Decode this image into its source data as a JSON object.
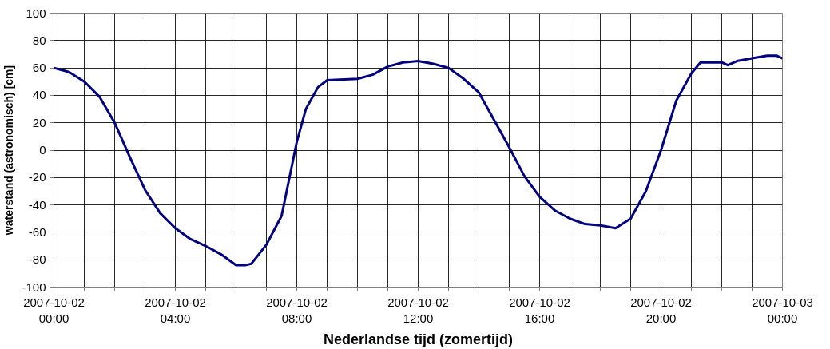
{
  "chart_data": {
    "type": "line",
    "xlabel": "Nederlandse tijd (zomertijd)",
    "ylabel": "waterstand (astronomisch) [cm]",
    "grid": true,
    "marker": "none",
    "line_style": "solid",
    "x": [
      "2007-10-02T00:00",
      "2007-10-02T00:30",
      "2007-10-02T01:00",
      "2007-10-02T01:30",
      "2007-10-02T02:00",
      "2007-10-02T02:30",
      "2007-10-02T03:00",
      "2007-10-02T03:30",
      "2007-10-02T04:00",
      "2007-10-02T04:30",
      "2007-10-02T05:00",
      "2007-10-02T05:30",
      "2007-10-02T06:00",
      "2007-10-02T06:18",
      "2007-10-02T06:30",
      "2007-10-02T07:00",
      "2007-10-02T07:30",
      "2007-10-02T08:00",
      "2007-10-02T08:18",
      "2007-10-02T08:42",
      "2007-10-02T09:00",
      "2007-10-02T10:00",
      "2007-10-02T10:30",
      "2007-10-02T11:00",
      "2007-10-02T11:30",
      "2007-10-02T12:00",
      "2007-10-02T12:30",
      "2007-10-02T13:00",
      "2007-10-02T13:30",
      "2007-10-02T14:00",
      "2007-10-02T14:30",
      "2007-10-02T15:00",
      "2007-10-02T15:30",
      "2007-10-02T16:00",
      "2007-10-02T16:30",
      "2007-10-02T17:00",
      "2007-10-02T17:30",
      "2007-10-02T18:00",
      "2007-10-02T18:30",
      "2007-10-02T19:00",
      "2007-10-02T19:30",
      "2007-10-02T20:00",
      "2007-10-02T20:30",
      "2007-10-02T21:00",
      "2007-10-02T21:18",
      "2007-10-02T22:00",
      "2007-10-02T22:12",
      "2007-10-02T22:30",
      "2007-10-02T23:00",
      "2007-10-02T23:30",
      "2007-10-02T23:48",
      "2007-10-03T00:00"
    ],
    "series": [
      {
        "color": "#000080",
        "values": [
          60,
          57,
          50,
          39,
          20,
          -5,
          -29,
          -46,
          -57,
          -65,
          -70,
          -76,
          -84,
          -84,
          -83,
          -69,
          -48,
          6,
          30,
          46,
          51,
          52,
          55,
          61,
          64,
          65,
          63,
          60,
          52,
          42,
          22,
          2,
          -19,
          -34,
          -44,
          -50,
          -54,
          -55,
          -57,
          -50,
          -30,
          0,
          36,
          56,
          64,
          64,
          62,
          65,
          67,
          69,
          69,
          67
        ]
      }
    ],
    "xlim": [
      "2007-10-02T00:00",
      "2007-10-03T00:00"
    ],
    "xticks": [
      {
        "value": "2007-10-02T00:00",
        "label": "2007-10-02\n00:00"
      },
      {
        "value": "2007-10-02T01:00",
        "label": null
      },
      {
        "value": "2007-10-02T02:00",
        "label": null
      },
      {
        "value": "2007-10-02T03:00",
        "label": null
      },
      {
        "value": "2007-10-02T04:00",
        "label": "2007-10-02\n04:00"
      },
      {
        "value": "2007-10-02T05:00",
        "label": null
      },
      {
        "value": "2007-10-02T06:00",
        "label": null
      },
      {
        "value": "2007-10-02T07:00",
        "label": null
      },
      {
        "value": "2007-10-02T08:00",
        "label": "2007-10-02\n08:00"
      },
      {
        "value": "2007-10-02T09:00",
        "label": null
      },
      {
        "value": "2007-10-02T10:00",
        "label": null
      },
      {
        "value": "2007-10-02T11:00",
        "label": null
      },
      {
        "value": "2007-10-02T12:00",
        "label": "2007-10-02\n12:00"
      },
      {
        "value": "2007-10-02T13:00",
        "label": null
      },
      {
        "value": "2007-10-02T14:00",
        "label": null
      },
      {
        "value": "2007-10-02T15:00",
        "label": null
      },
      {
        "value": "2007-10-02T16:00",
        "label": "2007-10-02\n16:00"
      },
      {
        "value": "2007-10-02T17:00",
        "label": null
      },
      {
        "value": "2007-10-02T18:00",
        "label": null
      },
      {
        "value": "2007-10-02T19:00",
        "label": null
      },
      {
        "value": "2007-10-02T20:00",
        "label": "2007-10-02\n20:00"
      },
      {
        "value": "2007-10-02T21:00",
        "label": null
      },
      {
        "value": "2007-10-02T22:00",
        "label": null
      },
      {
        "value": "2007-10-02T23:00",
        "label": null
      },
      {
        "value": "2007-10-03T00:00",
        "label": "2007-10-03\n00:00"
      }
    ],
    "ylim": [
      -100,
      100
    ],
    "yticks": [
      -100,
      -80,
      -60,
      -40,
      -20,
      0,
      20,
      40,
      60,
      80,
      100
    ]
  }
}
